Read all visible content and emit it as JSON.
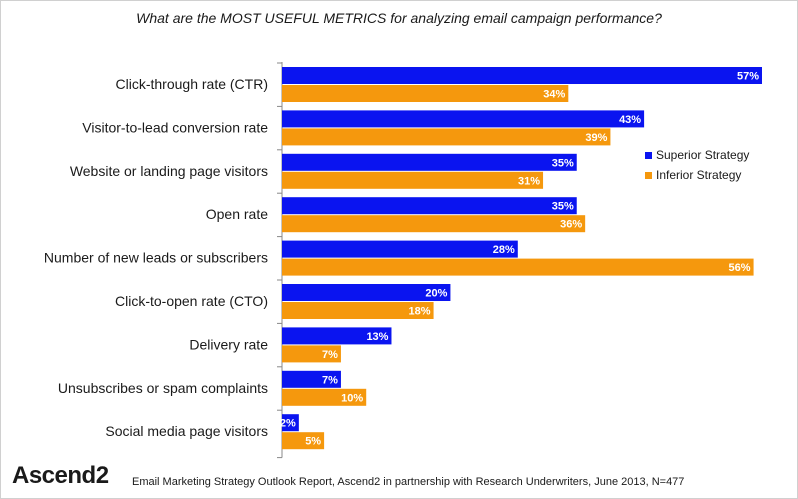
{
  "title": "What are the MOST USEFUL METRICS for analyzing email campaign performance?",
  "brand": {
    "name": "Ascend",
    "number": "2"
  },
  "source": "Email Marketing Strategy Outlook Report, Ascend2 in partnership with Research Underwriters, June 2013, N=477",
  "colors": {
    "superior": "#0a14f0",
    "inferior": "#f5980d",
    "axis": "#888888"
  },
  "chart_data": {
    "type": "bar",
    "orientation": "horizontal",
    "title": "What are the MOST USEFUL METRICS for analyzing email campaign performance?",
    "categories": [
      "Click-through rate (CTR)",
      "Visitor-to-lead conversion rate",
      "Website or landing page visitors",
      "Open rate",
      "Number of new leads or subscribers",
      "Click-to-open rate (CTO)",
      "Delivery rate",
      "Unsubscribes or spam complaints",
      "Social media page visitors"
    ],
    "series": [
      {
        "name": "Superior Strategy",
        "values": [
          57,
          43,
          35,
          35,
          28,
          20,
          13,
          7,
          2
        ]
      },
      {
        "name": "Inferior Strategy",
        "values": [
          34,
          39,
          31,
          36,
          56,
          18,
          7,
          10,
          5
        ]
      }
    ],
    "value_suffix": "%",
    "xlim": [
      0,
      57
    ],
    "grid": false,
    "legend_position": "right"
  }
}
